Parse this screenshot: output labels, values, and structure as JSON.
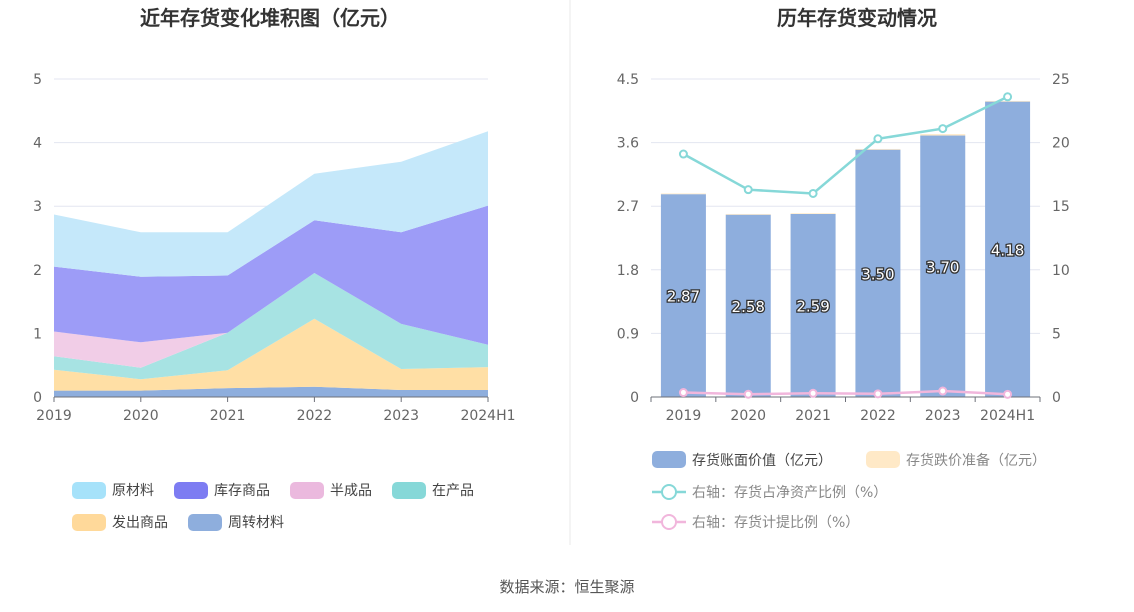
{
  "source_text": "数据来源：恒生聚源",
  "chart_data": [
    {
      "type": "area",
      "stacked": true,
      "title": "近年存货变化堆积图（亿元）",
      "categories": [
        "2019",
        "2020",
        "2021",
        "2022",
        "2023",
        "2024H1"
      ],
      "ylim": [
        0,
        5
      ],
      "yticks": [
        0,
        1,
        2,
        3,
        4,
        5
      ],
      "grid": true,
      "legend_position": "bottom",
      "series": [
        {
          "name": "周转材料",
          "color": "#8eaedd",
          "values": [
            0.1,
            0.1,
            0.14,
            0.16,
            0.11,
            0.11
          ]
        },
        {
          "name": "发出商品",
          "color": "#ffdfa5",
          "values": [
            0.33,
            0.18,
            0.28,
            1.07,
            0.33,
            0.36
          ]
        },
        {
          "name": "在产品",
          "color": "#a7e3e3",
          "values": [
            0.21,
            0.18,
            0.59,
            0.72,
            0.71,
            0.35
          ]
        },
        {
          "name": "半成品",
          "color": "#f1cde7",
          "values": [
            0.39,
            0.4,
            0.0,
            0.0,
            0.0,
            0.0
          ]
        },
        {
          "name": "库存商品",
          "color": "#9d9cf7",
          "values": [
            1.02,
            1.03,
            0.9,
            0.83,
            1.44,
            2.19
          ]
        },
        {
          "name": "原材料",
          "color": "#c5e8fa",
          "values": [
            0.82,
            0.7,
            0.68,
            0.73,
            1.11,
            1.17
          ]
        }
      ],
      "legend": [
        {
          "name": "原材料",
          "color": "#a6e2fa"
        },
        {
          "name": "库存商品",
          "color": "#7d7cf2"
        },
        {
          "name": "半成品",
          "color": "#ebb9de"
        },
        {
          "name": "在产品",
          "color": "#86d8d8"
        },
        {
          "name": "发出商品",
          "color": "#ffd99a"
        },
        {
          "name": "周转材料",
          "color": "#8eaedd"
        }
      ]
    },
    {
      "type": "bar",
      "title": "历年存货变动情况",
      "categories": [
        "2019",
        "2020",
        "2021",
        "2022",
        "2023",
        "2024H1"
      ],
      "ylim": [
        0,
        4.5
      ],
      "yticks": [
        "0",
        "0.9",
        "1.8",
        "2.7",
        "3.6",
        "4.5"
      ],
      "y2lim": [
        0,
        25
      ],
      "y2ticks": [
        "0",
        "5",
        "10",
        "15",
        "20",
        "25"
      ],
      "grid": true,
      "legend_position": "bottom",
      "series": [
        {
          "name": "存货账面价值（亿元）",
          "color": "#8eaedd",
          "axis": "left",
          "type": "bar",
          "stack": "total",
          "values": [
            2.87,
            2.58,
            2.59,
            3.5,
            3.7,
            4.18
          ],
          "labels": [
            "2.87",
            "2.58",
            "2.59",
            "3.50",
            "3.70",
            "4.18"
          ]
        },
        {
          "name": "存货跌价准备（亿元）",
          "color": "#ffe9c7",
          "axis": "left",
          "type": "bar",
          "stack": "total",
          "values": [
            0.01,
            0.01,
            0.01,
            0.01,
            0.02,
            0.01
          ]
        },
        {
          "name": "右轴：存货占净资产比例（%）",
          "color": "#86d8d8",
          "axis": "right",
          "type": "line",
          "values": [
            19.1,
            16.3,
            16.0,
            20.3,
            21.1,
            23.6
          ]
        },
        {
          "name": "右轴：存货计提比例（%）",
          "color": "#f1b6dc",
          "axis": "right",
          "type": "line",
          "values": [
            0.35,
            0.22,
            0.29,
            0.25,
            0.47,
            0.21
          ]
        }
      ]
    }
  ]
}
